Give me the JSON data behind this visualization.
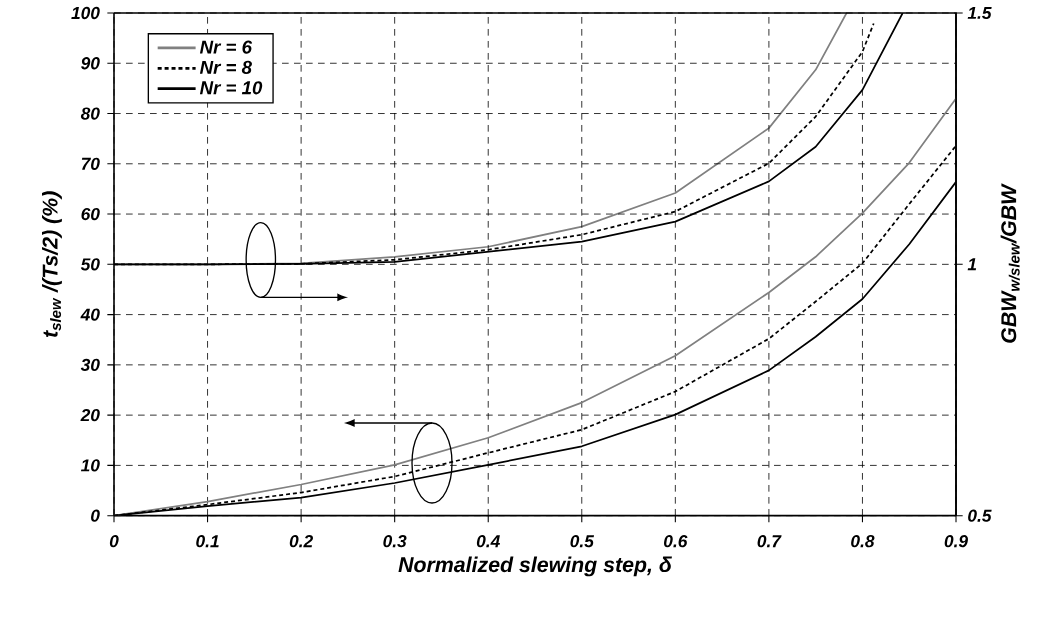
{
  "chart_data": {
    "type": "line",
    "xlabel": "Normalized slewing step, δ",
    "ylabel": "t$_{slew}$ /(Ts/2) (%)",
    "y2label": "GBW$_{w/slew}$/GBW",
    "xlim": [
      0,
      0.9
    ],
    "xticks": [
      0,
      0.1,
      0.2,
      0.3,
      0.4,
      0.5,
      0.6,
      0.7,
      0.8,
      0.9
    ],
    "ylim": [
      0,
      100
    ],
    "yticks": [
      0,
      10,
      20,
      30,
      40,
      50,
      60,
      70,
      80,
      90,
      100
    ],
    "y2lim": [
      0.5,
      1.5
    ],
    "y2ticks": [
      0.5,
      1,
      1.5
    ],
    "grid": true,
    "legend": "top left",
    "series": [
      {
        "name": "Nr = 6",
        "color": "#808080",
        "line_style": "solid",
        "x": [
          0,
          0.1,
          0.2,
          0.3,
          0.4,
          0.5,
          0.6,
          0.7,
          0.75,
          0.8,
          0.85,
          0.9
        ],
        "values": [
          0,
          2.8,
          6.2,
          10.1,
          15.5,
          22.5,
          31.8,
          44.4,
          51.5,
          60.2,
          70.2,
          83
        ]
      },
      {
        "name": "Nr = 8",
        "color": "#000000",
        "line_style": "dashed",
        "x": [
          0,
          0.1,
          0.2,
          0.3,
          0.4,
          0.5,
          0.6,
          0.7,
          0.75,
          0.8,
          0.85,
          0.9
        ],
        "values": [
          0,
          2.2,
          4.6,
          7.8,
          12.5,
          17.1,
          24.7,
          35.2,
          42.6,
          50.2,
          62,
          73.6
        ]
      },
      {
        "name": "Nr = 10",
        "color": "#000000",
        "line_style": "solid",
        "x": [
          0,
          0.1,
          0.2,
          0.3,
          0.4,
          0.5,
          0.6,
          0.7,
          0.75,
          0.8,
          0.85,
          0.9
        ],
        "values": [
          0,
          1.9,
          3.6,
          6.5,
          10.1,
          13.8,
          20.1,
          28.9,
          35.6,
          43.1,
          54,
          66.4
        ]
      },
      {
        "color": "#808080",
        "line_style": "solid",
        "axis": "y2",
        "x": [
          0,
          0.1,
          0.2,
          0.3,
          0.4,
          0.5,
          0.6,
          0.7,
          0.75,
          0.783
        ],
        "values": [
          1,
          1,
          1.002,
          1.015,
          1.035,
          1.075,
          1.142,
          1.271,
          1.387,
          1.5
        ]
      },
      {
        "color": "#000000",
        "line_style": "dashed",
        "axis": "y2",
        "x": [
          0,
          0.1,
          0.2,
          0.3,
          0.4,
          0.5,
          0.6,
          0.7,
          0.75,
          0.8,
          0.812
        ],
        "values": [
          1,
          1,
          1.001,
          1.009,
          1.029,
          1.059,
          1.105,
          1.201,
          1.294,
          1.423,
          1.479
        ]
      },
      {
        "color": "#000000",
        "line_style": "solid",
        "axis": "y2",
        "x": [
          0,
          0.1,
          0.2,
          0.3,
          0.4,
          0.5,
          0.6,
          0.7,
          0.75,
          0.8,
          0.843
        ],
        "values": [
          1,
          1,
          1.001,
          1.005,
          1.025,
          1.045,
          1.085,
          1.165,
          1.234,
          1.347,
          1.5
        ]
      }
    ]
  }
}
